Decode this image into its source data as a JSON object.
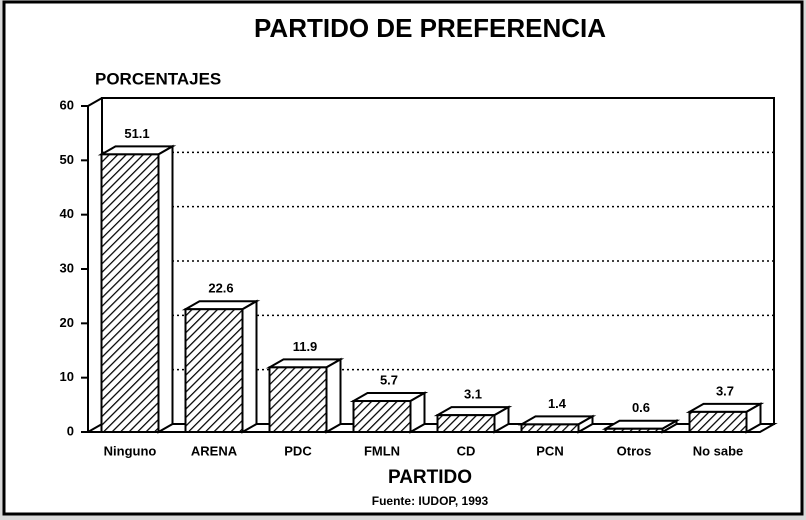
{
  "chart_data": {
    "type": "bar",
    "title": "PARTIDO DE PREFERENCIA",
    "y_label": "PORCENTAJES",
    "x_label": "PARTIDO",
    "source": "Fuente: IUDOP, 1993",
    "categories": [
      "Ninguno",
      "ARENA",
      "PDC",
      "FMLN",
      "CD",
      "PCN",
      "Otros",
      "No sabe"
    ],
    "values": [
      51.1,
      22.6,
      11.9,
      5.7,
      3.1,
      1.4,
      0.6,
      3.7
    ],
    "color": "#000000",
    "ylim": [
      0,
      60
    ],
    "yticks": [
      0,
      10,
      20,
      30,
      40,
      50,
      60
    ],
    "grid": true
  }
}
